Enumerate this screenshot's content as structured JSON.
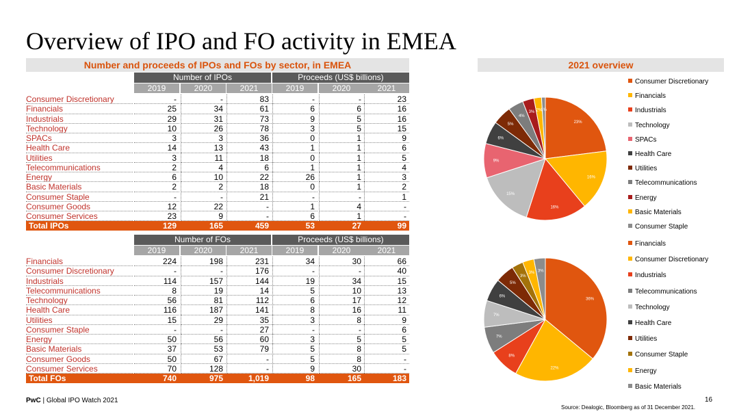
{
  "title": "Overview of IPO and FO activity in EMEA",
  "left_heading": "Number and proceeds of IPOs and FOs by sector, in EMEA",
  "right_heading": "2021 overview",
  "chart_data": [
    {
      "type": "table",
      "group_headers": [
        "Number of IPOs",
        "Proceeds (US$ billions)"
      ],
      "years": [
        "2019",
        "2020",
        "2021",
        "2019",
        "2020",
        "2021"
      ],
      "rows": [
        {
          "sector": "Consumer Discretionary",
          "values": [
            "-",
            "-",
            "83",
            "-",
            "-",
            "23"
          ]
        },
        {
          "sector": "Financials",
          "values": [
            "25",
            "34",
            "61",
            "6",
            "6",
            "16"
          ]
        },
        {
          "sector": "Industrials",
          "values": [
            "29",
            "31",
            "73",
            "9",
            "5",
            "16"
          ]
        },
        {
          "sector": "Technology",
          "values": [
            "10",
            "26",
            "78",
            "3",
            "5",
            "15"
          ]
        },
        {
          "sector": "SPACs",
          "values": [
            "3",
            "3",
            "36",
            "0",
            "1",
            "9"
          ]
        },
        {
          "sector": "Health Care",
          "values": [
            "14",
            "13",
            "43",
            "1",
            "1",
            "6"
          ]
        },
        {
          "sector": "Utilities",
          "values": [
            "3",
            "11",
            "18",
            "0",
            "1",
            "5"
          ]
        },
        {
          "sector": "Telecommunications",
          "values": [
            "2",
            "4",
            "6",
            "1",
            "1",
            "4"
          ]
        },
        {
          "sector": "Energy",
          "values": [
            "6",
            "10",
            "22",
            "26",
            "1",
            "3"
          ]
        },
        {
          "sector": "Basic Materials",
          "values": [
            "2",
            "2",
            "18",
            "0",
            "1",
            "2"
          ]
        },
        {
          "sector": "Consumer Staple",
          "values": [
            "-",
            "-",
            "21",
            "-",
            "-",
            "1"
          ]
        },
        {
          "sector": "Consumer Goods",
          "values": [
            "12",
            "22",
            "-",
            "1",
            "4",
            "-"
          ]
        },
        {
          "sector": "Consumer Services",
          "values": [
            "23",
            "9",
            "-",
            "6",
            "1",
            "-"
          ]
        }
      ],
      "total": {
        "sector": "Total IPOs",
        "values": [
          "129",
          "165",
          "459",
          "53",
          "27",
          "99"
        ]
      }
    },
    {
      "type": "table",
      "group_headers": [
        "Number of FOs",
        "Proceeds (US$ billions)"
      ],
      "years": [
        "2019",
        "2020",
        "2021",
        "2019",
        "2020",
        "2021"
      ],
      "rows": [
        {
          "sector": "Financials",
          "values": [
            "224",
            "198",
            "231",
            "34",
            "30",
            "66"
          ]
        },
        {
          "sector": "Consumer Discretionary",
          "values": [
            "-",
            "-",
            "176",
            "-",
            "-",
            "40"
          ]
        },
        {
          "sector": "Industrials",
          "values": [
            "114",
            "157",
            "144",
            "19",
            "34",
            "15"
          ]
        },
        {
          "sector": "Telecommunications",
          "values": [
            "8",
            "19",
            "14",
            "5",
            "10",
            "13"
          ]
        },
        {
          "sector": "Technology",
          "values": [
            "56",
            "81",
            "112",
            "6",
            "17",
            "12"
          ]
        },
        {
          "sector": "Health Care",
          "values": [
            "116",
            "187",
            "141",
            "8",
            "16",
            "11"
          ]
        },
        {
          "sector": "Utilities",
          "values": [
            "15",
            "29",
            "35",
            "3",
            "8",
            "9"
          ]
        },
        {
          "sector": "Consumer Staple",
          "values": [
            "-",
            "-",
            "27",
            "-",
            "-",
            "6"
          ]
        },
        {
          "sector": "Energy",
          "values": [
            "50",
            "56",
            "60",
            "3",
            "5",
            "5"
          ]
        },
        {
          "sector": "Basic Materials",
          "values": [
            "37",
            "53",
            "79",
            "5",
            "8",
            "5"
          ]
        },
        {
          "sector": "Consumer Goods",
          "values": [
            "50",
            "67",
            "-",
            "5",
            "8",
            "-"
          ]
        },
        {
          "sector": "Consumer Services",
          "values": [
            "70",
            "128",
            "-",
            "9",
            "30",
            "-"
          ]
        }
      ],
      "total": {
        "sector": "Total FOs",
        "values": [
          "740",
          "975",
          "1,019",
          "98",
          "165",
          "183"
        ]
      }
    },
    {
      "type": "pie",
      "slices": [
        {
          "name": "Consumer Discretionary",
          "value": 23,
          "label": "23%",
          "color": "#e0560f"
        },
        {
          "name": "Financials",
          "value": 16,
          "label": "16%",
          "color": "#ffb600"
        },
        {
          "name": "Industrials",
          "value": 16,
          "label": "16%",
          "color": "#e8401c"
        },
        {
          "name": "Technology",
          "value": 15,
          "label": "15%",
          "color": "#bdbdbd"
        },
        {
          "name": "SPACs",
          "value": 9,
          "label": "9%",
          "color": "#e86470"
        },
        {
          "name": "Health Care",
          "value": 6,
          "label": "6%",
          "color": "#404040"
        },
        {
          "name": "Utilities",
          "value": 5,
          "label": "5%",
          "color": "#7d2a06"
        },
        {
          "name": "Telecommunications",
          "value": 4,
          "label": "4%",
          "color": "#7d7d7d"
        },
        {
          "name": "Energy",
          "value": 3,
          "label": "3%",
          "color": "#a81c1c"
        },
        {
          "name": "Basic Materials",
          "value": 2,
          "label": "2%",
          "color": "#ffb600"
        },
        {
          "name": "Consumer Staple",
          "value": 1,
          "label": "1%",
          "color": "#8c8c8c"
        }
      ]
    },
    {
      "type": "pie",
      "slices": [
        {
          "name": "Financials",
          "value": 36,
          "label": "36%",
          "color": "#e0560f"
        },
        {
          "name": "Consumer Discretionary",
          "value": 22,
          "label": "22%",
          "color": "#ffb600"
        },
        {
          "name": "Industrials",
          "value": 8,
          "label": "8%",
          "color": "#e8401c"
        },
        {
          "name": "Telecommunications",
          "value": 7,
          "label": "7%",
          "color": "#7d7d7d"
        },
        {
          "name": "Technology",
          "value": 7,
          "label": "7%",
          "color": "#bdbdbd"
        },
        {
          "name": "Health Care",
          "value": 6,
          "label": "6%",
          "color": "#404040"
        },
        {
          "name": "Utilities",
          "value": 5,
          "label": "5%",
          "color": "#7d2a06"
        },
        {
          "name": "Consumer Staple",
          "value": 3,
          "label": "3%",
          "color": "#a3720a"
        },
        {
          "name": "Energy",
          "value": 3,
          "label": "3%",
          "color": "#ffb600"
        },
        {
          "name": "Basic Materials",
          "value": 3,
          "label": "3%",
          "color": "#8c8c8c"
        }
      ]
    }
  ],
  "footer": {
    "brand": "PwC",
    "text": " | Global IPO Watch 2021",
    "page": "16",
    "source": "Source: Dealogic, Bloomberg as of 31 December 2021."
  }
}
